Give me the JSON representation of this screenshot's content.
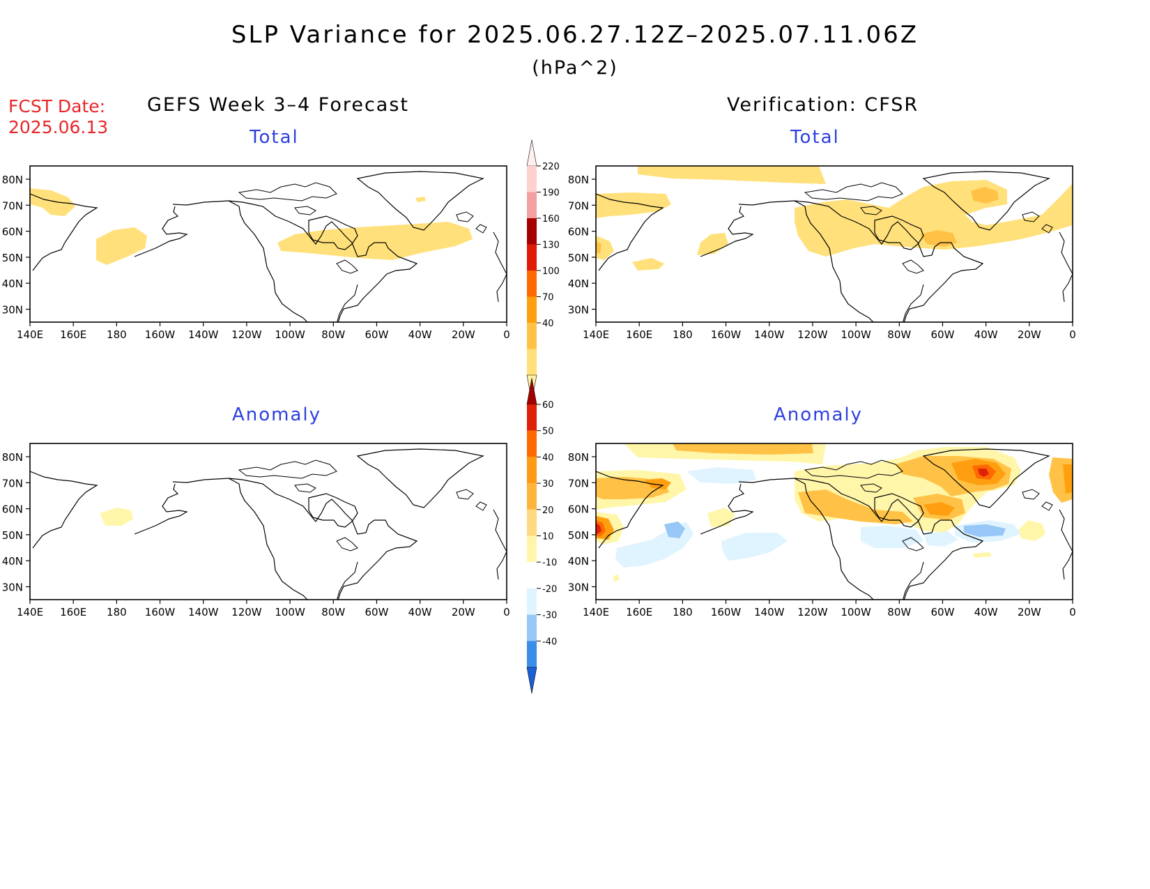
{
  "title": "SLP Variance for 2025.06.27.12Z–2025.07.11.06Z",
  "units": "(hPa^2)",
  "fcst_date_label": "FCST Date:",
  "fcst_date": "2025.06.13",
  "left_column_title": "GEFS Week 3–4 Forecast",
  "right_column_title": "Verification: CFSR",
  "panels": {
    "top_left": "Total",
    "top_right": "Total",
    "bottom_left": "Anomaly",
    "bottom_right": "Anomaly"
  },
  "lat_labels": [
    "80N",
    "70N",
    "60N",
    "50N",
    "40N",
    "30N"
  ],
  "lon_labels": [
    "140E",
    "160E",
    "180",
    "160W",
    "140W",
    "120W",
    "100W",
    "80W",
    "60W",
    "40W",
    "20W",
    "0"
  ],
  "total_colorbar": {
    "levels": [
      "40",
      "70",
      "100",
      "130",
      "160",
      "190",
      "220"
    ],
    "colors": [
      "#fff1a6",
      "#ffe07a",
      "#ffc246",
      "#ff9f0f",
      "#ff6a00",
      "#e11a08",
      "#a50000",
      "#f2a0a0",
      "#ffd0d0",
      "#fff0f0"
    ]
  },
  "anomaly_colorbar": {
    "levels": [
      "-40",
      "-30",
      "-20",
      "-10",
      "10",
      "20",
      "30",
      "40",
      "50",
      "60"
    ],
    "colors": [
      "#1a5fd6",
      "#3a8de8",
      "#96c7f6",
      "#dff4ff",
      "#ffffff",
      "#fff6aa",
      "#ffd980",
      "#ffb43c",
      "#ff9a14",
      "#ff6a00",
      "#e02008",
      "#a50000"
    ]
  },
  "fill_colors": {
    "light_yellow": "#fff6aa",
    "yellow": "#ffe07a",
    "light_orange": "#ffc246",
    "orange": "#ff9f0f",
    "dark_orange": "#ff6a00",
    "red": "#e02008",
    "dark_red": "#a50000",
    "light_blue": "#dff4ff",
    "mid_blue": "#96c7f6"
  }
}
